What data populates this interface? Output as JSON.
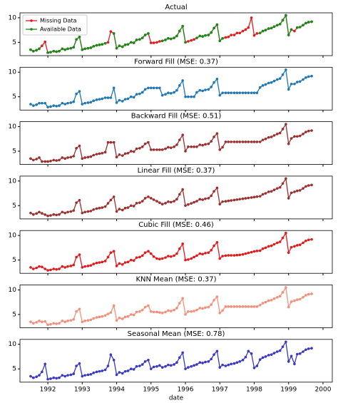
{
  "chart_data": {
    "type": "line",
    "xlabel": "date",
    "xlim": [
      1991.19,
      2000.27
    ],
    "xticks": [
      1992,
      1993,
      1994,
      1995,
      1996,
      1997,
      1998,
      1999,
      2000
    ],
    "x": [
      1991.5,
      1991.58,
      1991.67,
      1991.75,
      1991.83,
      1991.92,
      1992,
      1992.08,
      1992.17,
      1992.25,
      1992.33,
      1992.42,
      1992.5,
      1992.58,
      1992.67,
      1992.75,
      1992.83,
      1992.92,
      1993,
      1993.08,
      1993.17,
      1993.25,
      1993.33,
      1993.42,
      1993.5,
      1993.58,
      1993.67,
      1993.75,
      1993.83,
      1993.92,
      1994,
      1994.08,
      1994.17,
      1994.25,
      1994.33,
      1994.42,
      1994.5,
      1994.58,
      1994.67,
      1994.75,
      1994.83,
      1994.92,
      1995,
      1995.08,
      1995.17,
      1995.25,
      1995.33,
      1995.42,
      1995.5,
      1995.58,
      1995.67,
      1995.75,
      1995.83,
      1995.92,
      1996,
      1996.08,
      1996.17,
      1996.25,
      1996.33,
      1996.42,
      1996.5,
      1996.58,
      1996.67,
      1996.75,
      1996.83,
      1996.92,
      1997,
      1997.08,
      1997.17,
      1997.25,
      1997.33,
      1997.42,
      1997.5,
      1997.58,
      1997.67,
      1997.75,
      1997.83,
      1997.92,
      1998,
      1998.08,
      1998.17,
      1998.25,
      1998.33,
      1998.42,
      1998.5,
      1998.58,
      1998.67,
      1998.75,
      1998.83,
      1998.92,
      1999,
      1999.08,
      1999.17,
      1999.25,
      1999.33,
      1999.42,
      1999.5,
      1999.58,
      1999.67
    ],
    "panels": [
      {
        "title": "Actual",
        "ylim": [
          2.3,
          11.0
        ],
        "yticks": [
          5,
          10
        ],
        "legend": "upper left",
        "series": [
          {
            "name": "Missing Data",
            "color": "#e41a1c",
            "values": [
              3.5,
              3.2,
              3.4,
              3.7,
              4.3,
              5.1,
              2.9,
              3.0,
              3.2,
              3.1,
              3.2,
              3.7,
              3.5,
              3.7,
              3.8,
              4.0,
              5.6,
              6.1,
              3.5,
              3.7,
              3.8,
              3.9,
              4.2,
              4.4,
              4.5,
              4.6,
              4.8,
              5.0,
              7.2,
              6.8,
              3.8,
              4.3,
              4.1,
              4.5,
              4.6,
              5.0,
              4.9,
              5.5,
              5.6,
              5.9,
              6.5,
              6.8,
              4.9,
              4.9,
              5.0,
              5.2,
              5.3,
              5.5,
              5.8,
              5.7,
              5.9,
              6.3,
              7.3,
              8.3,
              5.0,
              5.2,
              5.4,
              5.6,
              5.9,
              6.3,
              6.2,
              6.4,
              6.5,
              7.0,
              7.9,
              8.6,
              5.3,
              5.8,
              6.0,
              6.1,
              6.5,
              6.5,
              6.9,
              6.9,
              7.3,
              7.6,
              8.0,
              10.0,
              6.4,
              6.8,
              6.9,
              7.3,
              7.5,
              7.8,
              7.9,
              8.2,
              8.5,
              8.7,
              9.5,
              10.5,
              6.5,
              7.6,
              7.3,
              8.0,
              8.1,
              8.5,
              8.9,
              9.1,
              9.2
            ]
          },
          {
            "name": "Available Data",
            "color": "#1a8a1a",
            "values": [
              3.5,
              3.2,
              3.4,
              3.7,
              null,
              null,
              2.9,
              3.0,
              3.2,
              3.1,
              3.2,
              3.7,
              3.5,
              3.7,
              3.8,
              4.0,
              5.6,
              6.1,
              3.5,
              3.7,
              3.8,
              3.9,
              4.2,
              4.4,
              4.5,
              4.6,
              4.8,
              null,
              null,
              6.8,
              3.8,
              4.3,
              4.1,
              4.5,
              4.6,
              5.0,
              4.9,
              5.5,
              5.6,
              5.9,
              6.5,
              6.8,
              null,
              null,
              null,
              null,
              5.3,
              5.5,
              5.8,
              5.7,
              5.9,
              6.3,
              7.3,
              8.3,
              5.0,
              null,
              null,
              null,
              5.9,
              6.3,
              6.2,
              6.4,
              6.5,
              7.0,
              7.9,
              8.6,
              5.3,
              5.8,
              null,
              null,
              null,
              null,
              null,
              null,
              null,
              null,
              null,
              null,
              null,
              null,
              6.9,
              7.3,
              7.5,
              7.8,
              7.9,
              8.2,
              8.5,
              8.7,
              9.5,
              10.5,
              6.5,
              7.6,
              null,
              8.0,
              8.1,
              8.5,
              8.9,
              9.1,
              9.2
            ]
          }
        ]
      },
      {
        "title": "Forward Fill (MSE: 0.37)",
        "ylim": [
          2.3,
          11.0
        ],
        "yticks": [
          5,
          10
        ],
        "series": [
          {
            "color": "#1f77b4",
            "values": [
              3.5,
              3.2,
              3.4,
              3.7,
              3.7,
              3.7,
              2.9,
              3.0,
              3.2,
              3.1,
              3.2,
              3.7,
              3.5,
              3.7,
              3.8,
              4.0,
              5.6,
              6.1,
              3.5,
              3.7,
              3.8,
              3.9,
              4.2,
              4.4,
              4.5,
              4.6,
              4.8,
              4.8,
              4.8,
              6.8,
              3.8,
              4.3,
              4.1,
              4.5,
              4.6,
              5.0,
              4.9,
              5.5,
              5.6,
              5.9,
              6.5,
              6.8,
              6.8,
              6.8,
              6.8,
              6.8,
              5.3,
              5.5,
              5.8,
              5.7,
              5.9,
              6.3,
              7.3,
              8.3,
              5.0,
              5.0,
              5.0,
              5.0,
              5.9,
              6.3,
              6.2,
              6.4,
              6.5,
              7.0,
              7.9,
              8.6,
              5.3,
              5.8,
              5.8,
              5.8,
              5.8,
              5.8,
              5.8,
              5.8,
              5.8,
              5.8,
              5.8,
              5.8,
              5.8,
              5.8,
              6.9,
              7.3,
              7.5,
              7.8,
              7.9,
              8.2,
              8.5,
              8.7,
              9.5,
              10.5,
              6.5,
              7.6,
              7.6,
              8.0,
              8.1,
              8.5,
              8.9,
              9.1,
              9.2
            ]
          }
        ]
      },
      {
        "title": "Backward Fill (MSE: 0.51)",
        "ylim": [
          2.3,
          11.0
        ],
        "yticks": [
          5,
          10
        ],
        "series": [
          {
            "color": "#9c2f2f",
            "values": [
              3.5,
              3.2,
              3.4,
              3.7,
              2.9,
              2.9,
              2.9,
              3.0,
              3.2,
              3.1,
              3.2,
              3.7,
              3.5,
              3.7,
              3.8,
              4.0,
              5.6,
              6.1,
              3.5,
              3.7,
              3.8,
              3.9,
              4.2,
              4.4,
              4.5,
              4.6,
              4.8,
              6.8,
              6.8,
              6.8,
              3.8,
              4.3,
              4.1,
              4.5,
              4.6,
              5.0,
              4.9,
              5.5,
              5.6,
              5.9,
              6.5,
              6.8,
              5.3,
              5.3,
              5.3,
              5.3,
              5.3,
              5.5,
              5.8,
              5.7,
              5.9,
              6.3,
              7.3,
              8.3,
              5.0,
              5.9,
              5.9,
              5.9,
              5.9,
              6.3,
              6.2,
              6.4,
              6.5,
              7.0,
              7.9,
              8.6,
              5.3,
              5.8,
              6.9,
              6.9,
              6.9,
              6.9,
              6.9,
              6.9,
              6.9,
              6.9,
              6.9,
              6.9,
              6.9,
              6.9,
              6.9,
              7.3,
              7.5,
              7.8,
              7.9,
              8.2,
              8.5,
              8.7,
              9.5,
              10.5,
              6.5,
              7.6,
              8.0,
              8.0,
              8.1,
              8.5,
              8.9,
              9.1,
              9.2
            ]
          }
        ]
      },
      {
        "title": "Linear Fill (MSE: 0.37)",
        "ylim": [
          2.3,
          11.0
        ],
        "yticks": [
          5,
          10
        ],
        "series": [
          {
            "color": "#9c2f2f",
            "values": [
              3.5,
              3.2,
              3.4,
              3.7,
              3.43,
              3.17,
              2.9,
              3.0,
              3.2,
              3.1,
              3.2,
              3.7,
              3.5,
              3.7,
              3.8,
              4.0,
              5.6,
              6.1,
              3.5,
              3.7,
              3.8,
              3.9,
              4.2,
              4.4,
              4.5,
              4.6,
              4.8,
              5.47,
              6.13,
              6.8,
              3.8,
              4.3,
              4.1,
              4.5,
              4.6,
              5.0,
              4.9,
              5.5,
              5.6,
              5.9,
              6.5,
              6.8,
              6.5,
              6.2,
              5.9,
              5.6,
              5.3,
              5.5,
              5.8,
              5.7,
              5.9,
              6.3,
              7.3,
              8.3,
              5.0,
              5.23,
              5.45,
              5.68,
              5.9,
              6.3,
              6.2,
              6.4,
              6.5,
              7.0,
              7.9,
              8.6,
              5.3,
              5.8,
              5.88,
              5.97,
              6.05,
              6.14,
              6.22,
              6.31,
              6.39,
              6.48,
              6.56,
              6.65,
              6.73,
              6.82,
              6.9,
              7.3,
              7.5,
              7.8,
              7.9,
              8.2,
              8.5,
              8.7,
              9.5,
              10.5,
              6.5,
              7.6,
              7.8,
              8.0,
              8.1,
              8.5,
              8.9,
              9.1,
              9.2
            ]
          }
        ]
      },
      {
        "title": "Cubic Fill (MSE: 0.46)",
        "ylim": [
          2.3,
          11.0
        ],
        "yticks": [
          5,
          10
        ],
        "series": [
          {
            "color": "#e31a1c",
            "values": [
              3.5,
              3.2,
              3.4,
              3.7,
              3.6,
              3.2,
              2.9,
              3.0,
              3.2,
              3.1,
              3.2,
              3.7,
              3.5,
              3.7,
              3.8,
              4.0,
              5.6,
              6.1,
              3.5,
              3.7,
              3.8,
              3.9,
              4.2,
              4.4,
              4.5,
              4.6,
              4.8,
              5.6,
              6.5,
              6.8,
              3.8,
              4.3,
              4.1,
              4.5,
              4.6,
              5.0,
              4.9,
              5.5,
              5.6,
              5.9,
              6.5,
              6.8,
              6.3,
              5.7,
              5.3,
              5.2,
              5.3,
              5.5,
              5.8,
              5.7,
              5.9,
              6.3,
              7.3,
              8.3,
              5.0,
              5.1,
              5.3,
              5.6,
              5.9,
              6.3,
              6.2,
              6.4,
              6.5,
              7.0,
              7.9,
              8.6,
              5.3,
              5.8,
              5.9,
              5.95,
              5.95,
              5.95,
              6.0,
              6.05,
              6.15,
              6.3,
              6.45,
              6.6,
              6.75,
              6.85,
              6.9,
              7.3,
              7.5,
              7.8,
              7.9,
              8.2,
              8.5,
              8.7,
              9.5,
              10.5,
              6.5,
              7.6,
              7.8,
              8.0,
              8.1,
              8.5,
              8.9,
              9.1,
              9.2
            ]
          }
        ]
      },
      {
        "title": "KNN Mean (MSE: 0.37)",
        "ylim": [
          2.3,
          11.0
        ],
        "yticks": [
          5,
          10
        ],
        "series": [
          {
            "color": "#f4907a",
            "values": [
              3.5,
              3.2,
              3.4,
              3.7,
              3.5,
              3.6,
              2.9,
              3.0,
              3.2,
              3.1,
              3.2,
              3.7,
              3.5,
              3.7,
              3.8,
              4.0,
              5.6,
              6.1,
              3.5,
              3.7,
              3.8,
              3.9,
              4.2,
              4.4,
              4.5,
              4.6,
              4.8,
              5.1,
              5.4,
              6.8,
              3.8,
              4.3,
              4.1,
              4.5,
              4.6,
              5.0,
              4.9,
              5.5,
              5.6,
              5.9,
              6.5,
              6.8,
              5.6,
              5.5,
              5.5,
              5.4,
              5.3,
              5.5,
              5.8,
              5.7,
              5.9,
              6.3,
              7.3,
              8.3,
              5.0,
              5.6,
              5.6,
              5.7,
              5.9,
              6.3,
              6.2,
              6.4,
              6.5,
              7.0,
              7.9,
              8.6,
              5.3,
              5.8,
              6.6,
              6.6,
              6.6,
              6.6,
              6.6,
              6.6,
              6.6,
              6.6,
              6.6,
              6.6,
              6.6,
              6.6,
              6.9,
              7.3,
              7.5,
              7.8,
              7.9,
              8.2,
              8.5,
              8.7,
              9.5,
              10.5,
              6.5,
              7.6,
              7.8,
              8.0,
              8.1,
              8.5,
              8.9,
              9.1,
              9.2
            ]
          }
        ]
      },
      {
        "title": "Seasonal Mean (MSE: 0.78)",
        "ylim": [
          2.3,
          11.0
        ],
        "yticks": [
          5,
          10
        ],
        "series": [
          {
            "color": "#3838c8",
            "values": [
              3.5,
              3.2,
              3.4,
              3.7,
              4.4,
              6.0,
              2.9,
              3.0,
              3.2,
              3.1,
              3.2,
              3.7,
              3.5,
              3.7,
              3.8,
              4.0,
              5.6,
              6.1,
              3.5,
              3.7,
              3.8,
              3.9,
              4.2,
              4.4,
              4.5,
              4.6,
              4.8,
              5.6,
              7.9,
              6.8,
              3.8,
              4.3,
              4.1,
              4.5,
              4.6,
              5.0,
              4.9,
              5.5,
              5.6,
              5.9,
              6.5,
              6.8,
              5.0,
              5.4,
              5.5,
              5.7,
              5.3,
              5.5,
              5.8,
              5.7,
              5.9,
              6.3,
              7.3,
              8.3,
              5.0,
              5.3,
              5.5,
              5.7,
              5.9,
              6.3,
              6.2,
              6.4,
              6.5,
              7.0,
              7.9,
              8.6,
              5.3,
              5.8,
              5.6,
              5.8,
              6.0,
              6.1,
              6.3,
              6.5,
              6.8,
              7.4,
              8.6,
              8.1,
              5.2,
              5.6,
              6.9,
              7.3,
              7.5,
              7.8,
              7.9,
              8.2,
              8.5,
              8.7,
              9.5,
              10.5,
              6.5,
              7.6,
              6.0,
              8.0,
              8.1,
              8.5,
              8.9,
              9.1,
              9.2
            ]
          }
        ]
      }
    ]
  }
}
